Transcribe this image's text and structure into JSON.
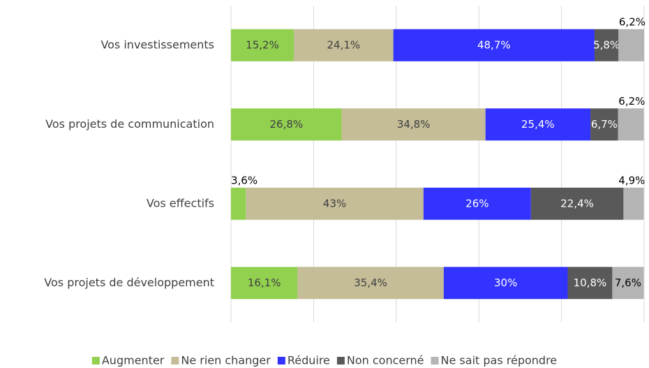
{
  "chart_data": {
    "type": "stacked_bar_100",
    "categories": [
      "Vos investissements",
      "Vos projets de communication",
      "Vos effectifs",
      "Vos projets de développement"
    ],
    "series": [
      {
        "name": "Augmenter",
        "color": "#92d050",
        "values": [
          15.2,
          26.8,
          3.6,
          16.1
        ],
        "value_labels": [
          "15,2%",
          "26,8%",
          "3,6%",
          "16,1%"
        ]
      },
      {
        "name": "Ne rien changer",
        "color": "#c4bd97",
        "values": [
          24.1,
          34.8,
          43,
          35.4
        ],
        "value_labels": [
          "24,1%",
          "34,8%",
          "43%",
          "35,4%"
        ]
      },
      {
        "name": "Réduire",
        "color": "#3333ff",
        "values": [
          48.7,
          25.4,
          26,
          30
        ],
        "value_labels": [
          "48,7%",
          "25,4%",
          "26%",
          "30%"
        ]
      },
      {
        "name": "Non concerné",
        "color": "#595959",
        "values": [
          5.8,
          6.7,
          22.4,
          10.8
        ],
        "value_labels": [
          "5,8%",
          "6,7%",
          "22,4%",
          "10,8%"
        ]
      },
      {
        "name": "Ne sait pas répondre",
        "color": "#b4b4b4",
        "values": [
          6.2,
          6.2,
          4.9,
          7.6
        ],
        "value_labels": [
          "6,2%",
          "6,2%",
          "4,9%",
          "7,6%"
        ]
      }
    ],
    "xlim": [
      0,
      100
    ],
    "xticks": [
      0,
      20,
      40,
      60,
      80,
      100
    ],
    "grid": true,
    "legend": "bottom"
  }
}
